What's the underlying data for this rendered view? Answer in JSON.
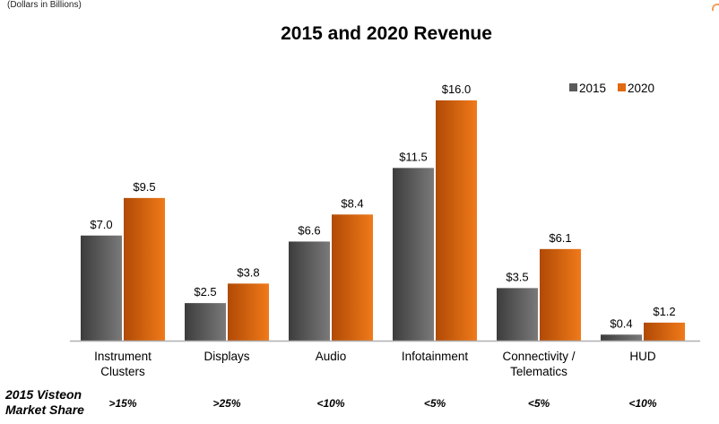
{
  "header": {
    "units_note": "(Dollars in Billions)"
  },
  "chart_data": {
    "type": "bar",
    "title": "2015 and 2020 Revenue",
    "categories": [
      [
        "Instrument",
        "Clusters"
      ],
      [
        "Displays"
      ],
      [
        "Audio"
      ],
      [
        "Infotainment"
      ],
      [
        "Connectivity /",
        "Telematics"
      ],
      [
        "HUD"
      ]
    ],
    "series": [
      {
        "name": "2015",
        "color": "#5a5a5a",
        "values": [
          7.0,
          2.5,
          6.6,
          11.5,
          3.5,
          0.4
        ],
        "labels": [
          "$7.0",
          "$2.5",
          "$6.6",
          "$11.5",
          "$3.5",
          "$0.4"
        ]
      },
      {
        "name": "2020",
        "color": "#e06a10",
        "values": [
          9.5,
          3.8,
          8.4,
          16.0,
          6.1,
          1.2
        ],
        "labels": [
          "$9.5",
          "$3.8",
          "$8.4",
          "$16.0",
          "$6.1",
          "$1.2"
        ]
      }
    ],
    "ylim": [
      0,
      16
    ],
    "legend_position": "top-right",
    "grid": false
  },
  "market_share": {
    "label_line1": "2015 Visteon",
    "label_line2": "Market Share",
    "values": [
      ">15%",
      ">25%",
      "<10%",
      "<5%",
      "<5%",
      "<10%"
    ]
  }
}
